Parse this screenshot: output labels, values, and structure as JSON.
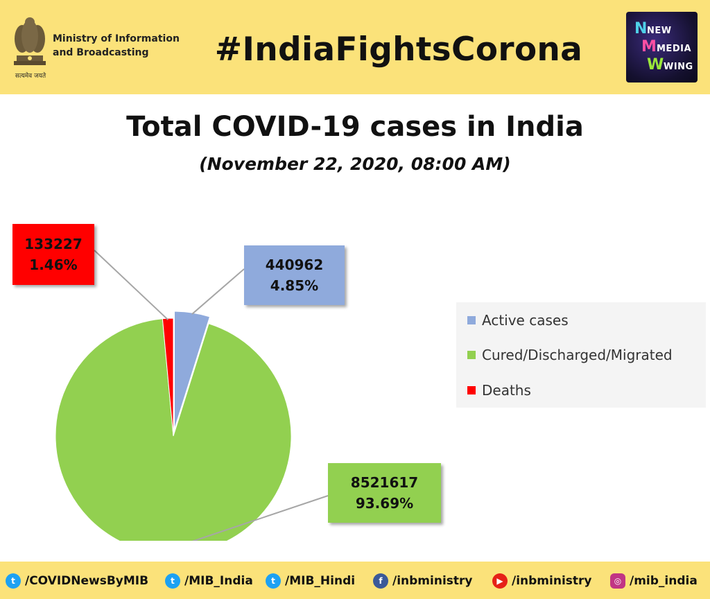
{
  "header": {
    "ministry_text": "Ministry of Information\nand Broadcasting",
    "emblem_motto": "सत्यमेव जयते",
    "hashtag": "#IndiaFightsCorona",
    "logo": {
      "line1": "NEW",
      "line2": "MEDIA",
      "line3": "WING"
    },
    "background": "#fbe27a"
  },
  "title": "Total COVID-19 cases in India",
  "subtitle": "(November 22, 2020, 08:00 AM)",
  "chart_data": {
    "type": "pie",
    "title": "Total COVID-19 cases in India",
    "subtitle": "(November 22, 2020, 08:00 AM)",
    "legend_position": "right",
    "slices": [
      {
        "name": "Active cases",
        "value": 440962,
        "percent_label": "4.85%",
        "value_label": "440962",
        "color": "#8faadc",
        "exploded": true
      },
      {
        "name": "Cured/Discharged/Migrated",
        "value": 8521617,
        "percent_label": "93.69%",
        "value_label": "8521617",
        "color": "#92d050",
        "exploded": false
      },
      {
        "name": "Deaths",
        "value": 133227,
        "percent_label": "1.46%",
        "value_label": "133227",
        "color": "#ff0000",
        "exploded": false
      }
    ]
  },
  "footer": {
    "items": [
      {
        "icon": "twitter-icon",
        "handle": "/COVIDNewsByMIB",
        "color": "#1da1f2"
      },
      {
        "icon": "twitter-icon",
        "handle": "/MIB_India",
        "color": "#1da1f2"
      },
      {
        "icon": "twitter-icon",
        "handle": "/MIB_Hindi",
        "color": "#1da1f2"
      },
      {
        "icon": "facebook-icon",
        "handle": "/inbministry",
        "color": "#3b5998"
      },
      {
        "icon": "youtube-icon",
        "handle": "/inbministry",
        "color": "#e62117"
      },
      {
        "icon": "instagram-icon",
        "handle": "/mib_india",
        "color": "#c13584"
      }
    ]
  }
}
